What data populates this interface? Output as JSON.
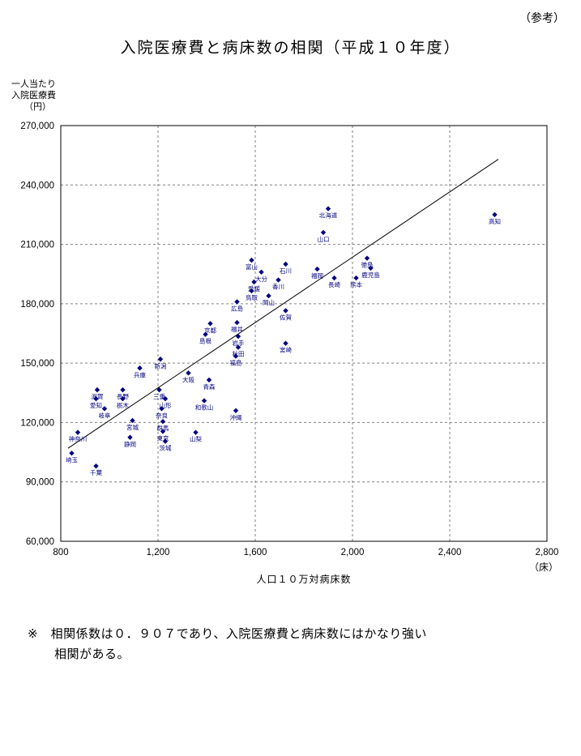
{
  "page": {
    "reference_label": "（参考）",
    "title": "入院医療費と病床数の相関（平成１０年度）",
    "y_axis_title_lines": [
      "一人当たり",
      "入院医療費",
      "（円）"
    ],
    "x_axis_title": "人口１０万対病床数",
    "x_axis_unit": "（床）",
    "note_line1": "※　相関係数は０．９０７であり、入院医療費と病床数にはかなり強い",
    "note_line2": "相関がある。"
  },
  "chart_data": {
    "type": "scatter",
    "title": "入院医療費と病床数の相関（平成１０年度）",
    "xlabel": "人口１０万対病床数",
    "ylabel": "一人当たり入院医療費（円）",
    "xlim": [
      800,
      2800
    ],
    "ylim": [
      60000,
      270000
    ],
    "x_ticks": [
      800,
      1200,
      1600,
      2000,
      2400,
      2800
    ],
    "y_ticks": [
      60000,
      90000,
      120000,
      150000,
      180000,
      210000,
      240000,
      270000
    ],
    "grid": "dashed",
    "legend": "none",
    "marker": "diamond",
    "marker_color": "#000080",
    "grid_color": "#808080",
    "axis_color": "#000000",
    "trendline": {
      "x1": 830,
      "y1": 107000,
      "x2": 2600,
      "y2": 253000
    },
    "correlation_coefficient": "０．９０７",
    "points": [
      {
        "name": "北海道",
        "x": 1900,
        "y": 228000
      },
      {
        "name": "青森",
        "x": 1410,
        "y": 141500
      },
      {
        "name": "岩手",
        "x": 1530,
        "y": 163500
      },
      {
        "name": "宮城",
        "x": 1095,
        "y": 121000
      },
      {
        "name": "秋田",
        "x": 1530,
        "y": 158000
      },
      {
        "name": "山形",
        "x": 1230,
        "y": 132000
      },
      {
        "name": "福島",
        "x": 1520,
        "y": 153500
      },
      {
        "name": "茨城",
        "x": 1230,
        "y": 110500
      },
      {
        "name": "栃木",
        "x": 1055,
        "y": 132000
      },
      {
        "name": "群馬",
        "x": 1220,
        "y": 120500
      },
      {
        "name": "埼玉",
        "x": 845,
        "y": 104500
      },
      {
        "name": "千葉",
        "x": 945,
        "y": 98000
      },
      {
        "name": "東京",
        "x": 1220,
        "y": 115500
      },
      {
        "name": "神奈川",
        "x": 870,
        "y": 115000
      },
      {
        "name": "新潟",
        "x": 1210,
        "y": 152000
      },
      {
        "name": "富山",
        "x": 1585,
        "y": 202000
      },
      {
        "name": "石川",
        "x": 1725,
        "y": 200000
      },
      {
        "name": "福井",
        "x": 1525,
        "y": 170500
      },
      {
        "name": "山梨",
        "x": 1355,
        "y": 115000
      },
      {
        "name": "長野",
        "x": 1055,
        "y": 136500
      },
      {
        "name": "岐阜",
        "x": 980,
        "y": 127000
      },
      {
        "name": "静岡",
        "x": 1085,
        "y": 112500
      },
      {
        "name": "愛知",
        "x": 945,
        "y": 132000
      },
      {
        "name": "三重",
        "x": 1205,
        "y": 136500
      },
      {
        "name": "滋賀",
        "x": 950,
        "y": 136500
      },
      {
        "name": "京都",
        "x": 1415,
        "y": 170000
      },
      {
        "name": "大阪",
        "x": 1325,
        "y": 145000
      },
      {
        "name": "兵庫",
        "x": 1125,
        "y": 147500
      },
      {
        "name": "奈良",
        "x": 1215,
        "y": 127000
      },
      {
        "name": "和歌山",
        "x": 1390,
        "y": 131000
      },
      {
        "name": "鳥取",
        "x": 1585,
        "y": 186500
      },
      {
        "name": "島根",
        "x": 1395,
        "y": 164500
      },
      {
        "name": "岡山",
        "x": 1655,
        "y": 184000
      },
      {
        "name": "広島",
        "x": 1525,
        "y": 181000
      },
      {
        "name": "山口",
        "x": 1880,
        "y": 216000
      },
      {
        "name": "徳島",
        "x": 2060,
        "y": 203000
      },
      {
        "name": "香川",
        "x": 1695,
        "y": 192000
      },
      {
        "name": "愛媛",
        "x": 1595,
        "y": 191000
      },
      {
        "name": "高知",
        "x": 2585,
        "y": 225000
      },
      {
        "name": "福岡",
        "x": 1855,
        "y": 197500
      },
      {
        "name": "佐賀",
        "x": 1725,
        "y": 176500
      },
      {
        "name": "長崎",
        "x": 1925,
        "y": 193000
      },
      {
        "name": "熊本",
        "x": 2015,
        "y": 193000
      },
      {
        "name": "大分",
        "x": 1625,
        "y": 196000
      },
      {
        "name": "宮崎",
        "x": 1725,
        "y": 160000
      },
      {
        "name": "鹿児島",
        "x": 2075,
        "y": 198000
      },
      {
        "name": "沖縄",
        "x": 1520,
        "y": 126000
      }
    ]
  }
}
